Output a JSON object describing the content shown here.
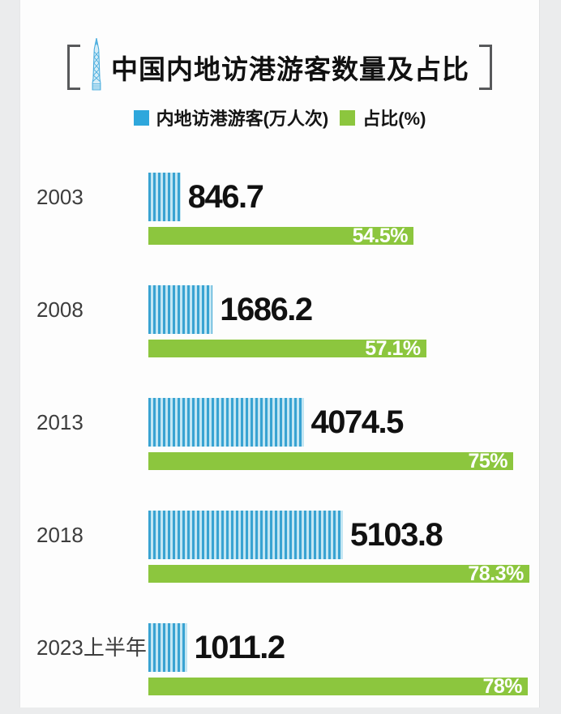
{
  "title": {
    "text": "中国内地访港游客数量及占比",
    "icon": "tower-icon"
  },
  "legend": {
    "visitors_label": "内地访港游客(万人次)",
    "share_label": "占比(%)"
  },
  "colors": {
    "blue": "#2ea7dc",
    "blue_stripe_dark": "#39a3d2",
    "blue_stripe_light": "#c3e6f3",
    "green": "#8cc63e",
    "text_dark": "#111111",
    "year_text": "#3d3d3d",
    "bracket": "#58595b",
    "page_background": "#ebeced",
    "card_background": "#fdfdfd"
  },
  "chart_data": {
    "type": "bar",
    "orientation": "horizontal",
    "title": "中国内地访港游客数量及占比",
    "categories": [
      "2003",
      "2008",
      "2013",
      "2018",
      "2023上半年"
    ],
    "series": [
      {
        "name": "内地访港游客(万人次)",
        "values": [
          846.7,
          1686.2,
          4074.5,
          5103.8,
          1011.2
        ],
        "color": "#2ea7dc",
        "style": "striped"
      },
      {
        "name": "占比(%)",
        "values": [
          54.5,
          57.1,
          75,
          78.3,
          78
        ],
        "color": "#8cc63e",
        "style": "solid"
      }
    ],
    "value_labels": [
      "846.7",
      "1686.2",
      "4074.5",
      "5103.8",
      "1011.2"
    ],
    "pct_labels": [
      "54.5%",
      "57.1%",
      "75%",
      "78.3%",
      "78%"
    ],
    "legend_position": "top",
    "grid": false,
    "value_axis_visible": false
  }
}
